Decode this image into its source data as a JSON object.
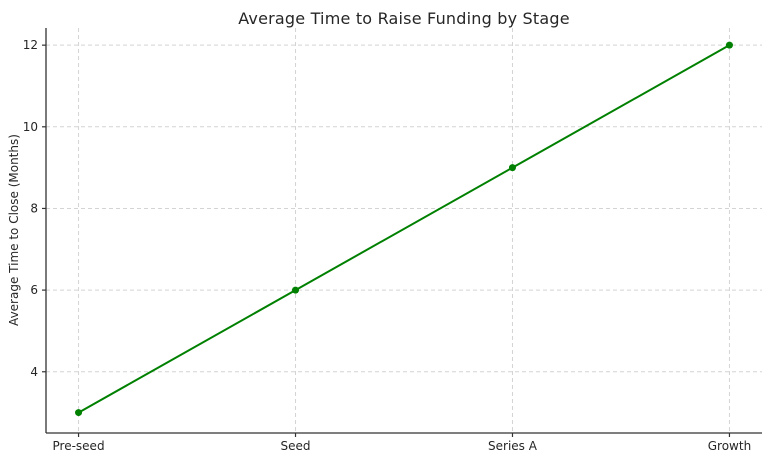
{
  "chart_data": {
    "type": "line",
    "title": "Average Time to Raise Funding by Stage",
    "xlabel": "",
    "ylabel": "Average Time to Close (Months)",
    "categories": [
      "Pre-seed",
      "Seed",
      "Series A",
      "Growth"
    ],
    "values": [
      3,
      6,
      9,
      12
    ],
    "yticks": [
      4,
      6,
      8,
      10,
      12
    ],
    "ylim": [
      2.5,
      12.42
    ],
    "grid": true,
    "grid_style": "dashed",
    "legend": false,
    "colors": {
      "line": "#008000",
      "marker": "#008000",
      "grid": "#d4d4d4",
      "axis": "#333333",
      "text": "#262626",
      "background": "#ffffff"
    }
  }
}
